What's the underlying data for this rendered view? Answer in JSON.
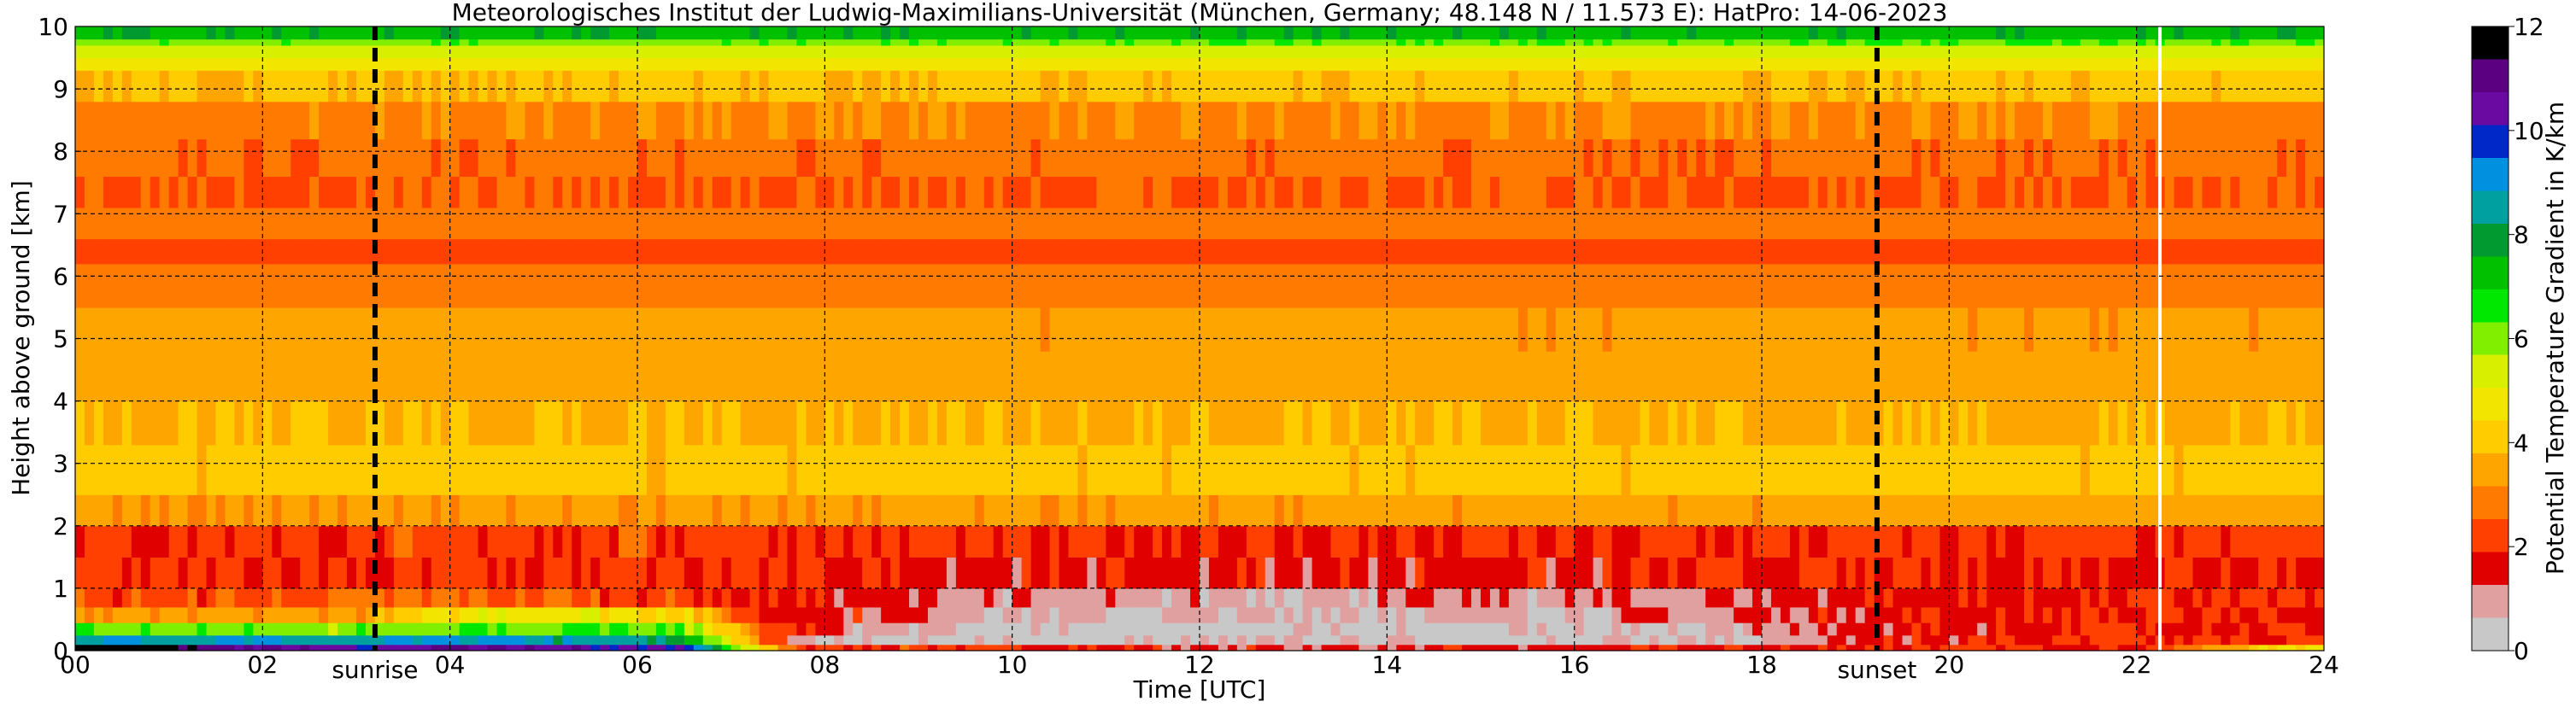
{
  "chart_data": {
    "type": "heatmap",
    "title": "Meteorologisches Institut der Ludwig-Maximilians-Universität (München, Germany; 48.148 N / 11.573 E):    HatPro: 14-06-2023",
    "xlabel": "Time [UTC]",
    "ylabel": "Height above ground [km]",
    "xlim": [
      0,
      24
    ],
    "ylim": [
      0,
      10
    ],
    "x_ticks": [
      0,
      2,
      4,
      6,
      8,
      10,
      12,
      14,
      16,
      18,
      20,
      22,
      24
    ],
    "x_tick_labels": [
      "00",
      "02",
      "04",
      "06",
      "08",
      "10",
      "12",
      "14",
      "16",
      "18",
      "20",
      "22",
      "24"
    ],
    "y_ticks": [
      0,
      1,
      2,
      3,
      4,
      5,
      6,
      7,
      8,
      9,
      10
    ],
    "y_tick_labels": [
      "0",
      "1",
      "2",
      "3",
      "4",
      "5",
      "6",
      "7",
      "8",
      "9",
      "10"
    ],
    "grid": true,
    "colorbar": {
      "label": "Potential Temperature Gradient in K/km",
      "range": [
        0,
        12
      ],
      "ticks": [
        0,
        2,
        4,
        6,
        8,
        10,
        12
      ],
      "tick_labels": [
        "0",
        "2",
        "4",
        "6",
        "8",
        "10",
        "12"
      ],
      "colors": [
        "#c8c8c8",
        "#e0a0a0",
        "#e00000",
        "#ff4000",
        "#ff7a00",
        "#ffa500",
        "#ffcc00",
        "#f2e600",
        "#d8f000",
        "#80f000",
        "#00e800",
        "#00c000",
        "#009a30",
        "#00a0a0",
        "#0090e0",
        "#0028c8",
        "#6a0aa0",
        "#5a0080",
        "#000000"
      ]
    },
    "annotations": [
      {
        "label": "sunrise",
        "x": 3.2
      },
      {
        "label": "sunset",
        "x": 19.23
      }
    ],
    "data_gap_x": 22.25,
    "layers": [
      {
        "y0": 0.0,
        "y1": 0.1,
        "profile": [
          [
            0,
            12
          ],
          [
            3,
            10
          ],
          [
            4,
            11
          ],
          [
            6.5,
            10
          ],
          [
            7.2,
            5
          ],
          [
            7.8,
            2
          ],
          [
            9,
            2.2
          ],
          [
            12,
            1.5
          ],
          [
            16,
            1.5
          ],
          [
            20,
            2
          ],
          [
            22,
            2
          ],
          [
            24,
            5
          ]
        ]
      },
      {
        "y0": 0.1,
        "y1": 0.25,
        "profile": [
          [
            0,
            9
          ],
          [
            3,
            8.5
          ],
          [
            4,
            9
          ],
          [
            6.5,
            8
          ],
          [
            7.3,
            3
          ],
          [
            8,
            0.4
          ],
          [
            17,
            0.4
          ],
          [
            19.3,
            1.6
          ],
          [
            24,
            2
          ]
        ]
      },
      {
        "y0": 0.25,
        "y1": 0.45,
        "profile": [
          [
            0,
            6.2
          ],
          [
            3,
            6
          ],
          [
            4.5,
            6.5
          ],
          [
            6.5,
            6
          ],
          [
            7.3,
            2.5
          ],
          [
            8.5,
            0.7
          ],
          [
            10,
            0.3
          ],
          [
            12,
            0.3
          ],
          [
            17,
            0.4
          ],
          [
            19.3,
            1.6
          ],
          [
            24,
            2
          ]
        ]
      },
      {
        "y0": 0.45,
        "y1": 0.7,
        "profile": [
          [
            0,
            3.2
          ],
          [
            3,
            3.4
          ],
          [
            4.5,
            5.2
          ],
          [
            6.5,
            4.5
          ],
          [
            7.3,
            2
          ],
          [
            10,
            0.8
          ],
          [
            12,
            0.6
          ],
          [
            16,
            0.8
          ],
          [
            19.3,
            1.7
          ],
          [
            24,
            2
          ]
        ]
      },
      {
        "y0": 0.7,
        "y1": 1.0,
        "profile": [
          [
            0,
            2.2
          ],
          [
            4.5,
            2.5
          ],
          [
            7,
            2
          ],
          [
            10,
            1
          ],
          [
            12,
            0.9
          ],
          [
            16,
            1
          ],
          [
            19.3,
            1.7
          ],
          [
            24,
            2
          ]
        ]
      },
      {
        "y0": 1.0,
        "y1": 1.5,
        "profile": [
          [
            0,
            2
          ],
          [
            7,
            1.9
          ],
          [
            10,
            1.6
          ],
          [
            16,
            1.6
          ],
          [
            19.3,
            1.8
          ],
          [
            24,
            1.9
          ]
        ]
      },
      {
        "y0": 1.5,
        "y1": 2.0,
        "profile": [
          [
            0,
            2.1
          ],
          [
            7,
            2.2
          ],
          [
            9,
            1.95
          ],
          [
            16,
            1.9
          ],
          [
            20,
            2
          ],
          [
            24,
            2.1
          ]
        ]
      },
      {
        "y0": 2.0,
        "y1": 2.5,
        "profile": [
          [
            0,
            3.2
          ],
          [
            24,
            3.3
          ]
        ]
      },
      {
        "y0": 2.5,
        "y1": 3.3,
        "profile": [
          [
            0,
            3.9
          ],
          [
            24,
            3.9
          ]
        ]
      },
      {
        "y0": 3.3,
        "y1": 4.0,
        "profile": [
          [
            0,
            3.8
          ],
          [
            24,
            3.7
          ]
        ]
      },
      {
        "y0": 4.0,
        "y1": 4.8,
        "profile": [
          [
            0,
            3.6
          ],
          [
            24,
            3.5
          ]
        ]
      },
      {
        "y0": 4.8,
        "y1": 5.5,
        "profile": [
          [
            0,
            3.3
          ],
          [
            24,
            3.25
          ]
        ]
      },
      {
        "y0": 5.5,
        "y1": 6.2,
        "profile": [
          [
            0,
            3.0
          ],
          [
            24,
            2.95
          ]
        ]
      },
      {
        "y0": 6.2,
        "y1": 6.6,
        "profile": [
          [
            0,
            2.35
          ],
          [
            24,
            2.35
          ]
        ]
      },
      {
        "y0": 6.6,
        "y1": 7.1,
        "profile": [
          [
            0,
            2.8
          ],
          [
            24,
            2.75
          ]
        ]
      },
      {
        "y0": 7.1,
        "y1": 7.6,
        "profile": [
          [
            0,
            2.5
          ],
          [
            24,
            2.5
          ]
        ]
      },
      {
        "y0": 7.6,
        "y1": 8.2,
        "profile": [
          [
            0,
            2.6
          ],
          [
            24,
            2.6
          ]
        ]
      },
      {
        "y0": 8.2,
        "y1": 8.8,
        "profile": [
          [
            0,
            3.1
          ],
          [
            24,
            3.1
          ]
        ]
      },
      {
        "y0": 8.8,
        "y1": 9.3,
        "profile": [
          [
            0,
            3.8
          ],
          [
            24,
            3.9
          ]
        ]
      },
      {
        "y0": 9.3,
        "y1": 9.5,
        "profile": [
          [
            0,
            4.7
          ],
          [
            24,
            4.8
          ]
        ]
      },
      {
        "y0": 9.5,
        "y1": 9.7,
        "profile": [
          [
            0,
            5.4
          ],
          [
            24,
            5.5
          ]
        ]
      },
      {
        "y0": 9.7,
        "y1": 9.8,
        "profile": [
          [
            0,
            6.2
          ],
          [
            24,
            6.3
          ]
        ]
      },
      {
        "y0": 9.8,
        "y1": 10.0,
        "profile": [
          [
            0,
            7.5
          ],
          [
            24,
            7.5
          ]
        ]
      }
    ]
  }
}
